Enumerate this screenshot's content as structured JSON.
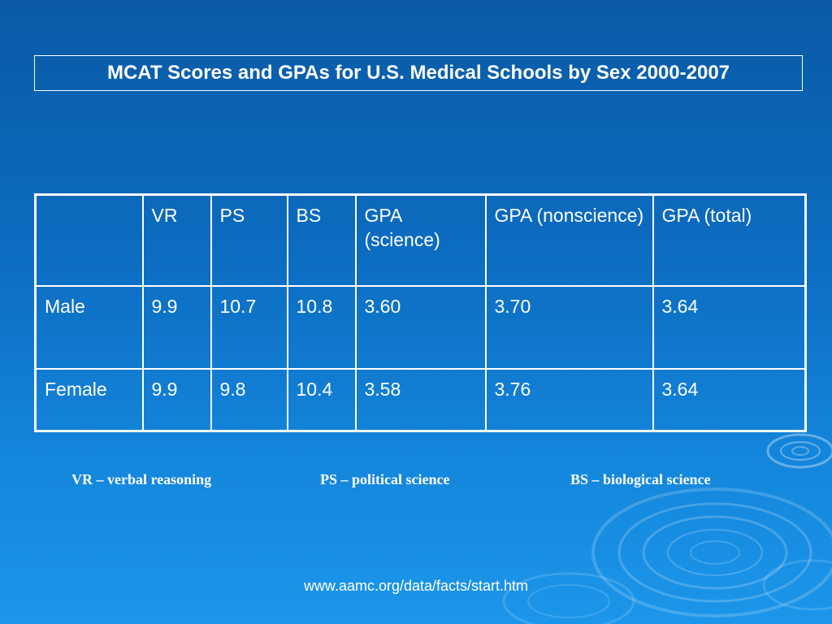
{
  "slide": {
    "title": "MCAT Scores and GPAs for U.S. Medical Schools by Sex 2000-2007"
  },
  "table": {
    "headers": [
      "",
      "VR",
      "PS",
      "BS",
      "GPA (science)",
      "GPA (nonscience)",
      "GPA (total)"
    ],
    "rows": [
      {
        "label": "Male",
        "values": [
          "9.9",
          "10.7",
          "10.8",
          "3.60",
          "3.70",
          "3.64"
        ]
      },
      {
        "label": "Female",
        "values": [
          "9.9",
          "9.8",
          "10.4",
          "3.58",
          "3.76",
          "3.64"
        ]
      }
    ]
  },
  "legend": {
    "vr": "VR – verbal reasoning",
    "ps": "PS – political science",
    "bs": "BS – biological science"
  },
  "source": "www.aamc.org/data/facts/start.htm",
  "colors": {
    "background_top": "#0a5aa6",
    "background_bottom": "#1c96ea",
    "text": "#ffffff"
  }
}
